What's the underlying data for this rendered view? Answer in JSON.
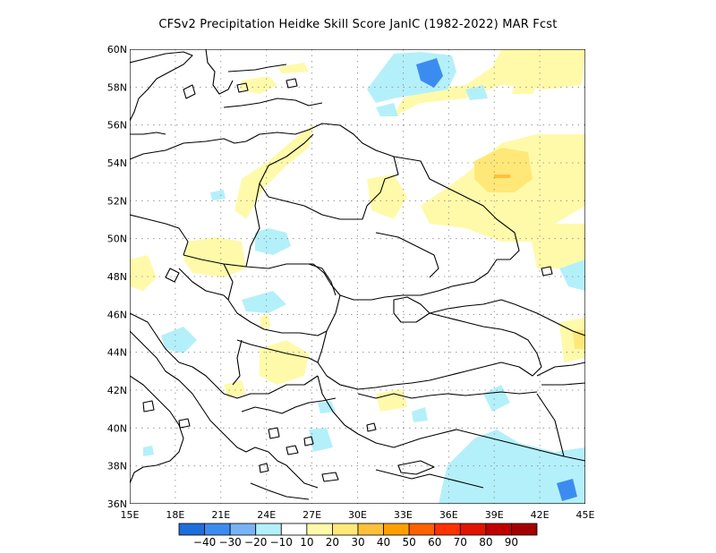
{
  "title": "CFSv2  Precipitation Heidke Skill Score JanIC (1982-2022) MAR Fcst",
  "lat_labels": [
    "60N",
    "58N",
    "56N",
    "54N",
    "52N",
    "50N",
    "48N",
    "46N",
    "44N",
    "42N",
    "40N",
    "38N",
    "36N"
  ],
  "lon_labels": [
    "15E",
    "18E",
    "21E",
    "24E",
    "27E",
    "30E",
    "33E",
    "36E",
    "39E",
    "42E",
    "45E"
  ],
  "colorbar": {
    "labels": [
      "-40",
      "-30",
      "-20",
      "-10",
      "10",
      "20",
      "30",
      "40",
      "50",
      "60",
      "70",
      "80",
      "90"
    ],
    "colors": [
      "#1e6edc",
      "#3c8cf0",
      "#78b4f5",
      "#b4f0fa",
      "#ffffff",
      "#fffaaa",
      "#ffe878",
      "#ffc03c",
      "#ffa000",
      "#ff6000",
      "#ff3200",
      "#e11400",
      "#c00000",
      "#a50000"
    ]
  },
  "fill_colors": {
    "light_yellow": "#fffaaa",
    "yellow": "#ffe878",
    "orange": "#ffc03c",
    "light_blue": "#b4f0fa",
    "mid_blue": "#78b4f5",
    "blue": "#3c8cf0"
  }
}
